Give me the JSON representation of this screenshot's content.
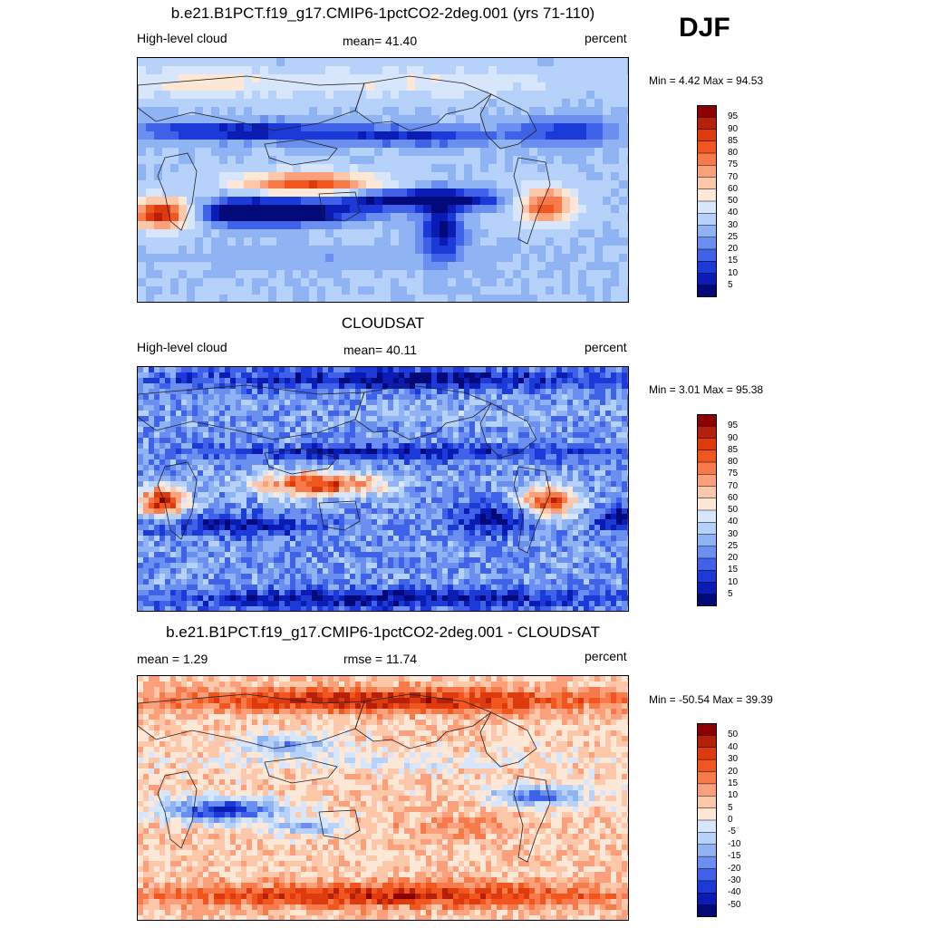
{
  "season": "DJF",
  "panels": [
    {
      "id": "model",
      "title": "b.e21.B1PCT.f19_g17.CMIP6-1pctCO2-2deg.001 (yrs 71-110)",
      "left": "High-level cloud",
      "center": "mean=  41.40",
      "right": "percent",
      "minmax": "Min =   4.42 Max =  94.53",
      "colorbar": {
        "labels": [
          "95",
          "90",
          "85",
          "80",
          "75",
          "70",
          "60",
          "50",
          "40",
          "30",
          "25",
          "20",
          "15",
          "10",
          "5"
        ],
        "colors": [
          "#8b0000",
          "#b5200a",
          "#dd3a0e",
          "#f2561f",
          "#f77b4a",
          "#fba07a",
          "#fdc7aa",
          "#fde8d8",
          "#d7e6fb",
          "#b7d2fa",
          "#8fb3f3",
          "#6a8ff0",
          "#3f62e8",
          "#1c3ad8",
          "#0b1cb5",
          "#020a7a"
        ]
      },
      "map_style": "smooth"
    },
    {
      "id": "obs",
      "title": "CLOUDSAT",
      "left": "High-level cloud",
      "center": "mean=  40.11",
      "right": "percent",
      "minmax": "Min =   3.01 Max =  95.38",
      "colorbar": {
        "labels": [
          "95",
          "90",
          "85",
          "80",
          "75",
          "70",
          "60",
          "50",
          "40",
          "30",
          "25",
          "20",
          "15",
          "10",
          "5"
        ],
        "colors": [
          "#8b0000",
          "#b5200a",
          "#dd3a0e",
          "#f2561f",
          "#f77b4a",
          "#fba07a",
          "#fdc7aa",
          "#fde8d8",
          "#d7e6fb",
          "#b7d2fa",
          "#8fb3f3",
          "#6a8ff0",
          "#3f62e8",
          "#1c3ad8",
          "#0b1cb5",
          "#020a7a"
        ]
      },
      "map_style": "noisy"
    },
    {
      "id": "diff",
      "title": "b.e21.B1PCT.f19_g17.CMIP6-1pctCO2-2deg.001 - CLOUDSAT",
      "left": "mean =   1.29",
      "center": "rmse =  11.74",
      "right": "percent",
      "minmax": "Min = -50.54 Max =  39.39",
      "colorbar": {
        "labels": [
          "50",
          "40",
          "30",
          "20",
          "15",
          "10",
          "5",
          "0",
          "-5",
          "-10",
          "-15",
          "-20",
          "-30",
          "-40",
          "-50"
        ],
        "colors": [
          "#8b0000",
          "#b5200a",
          "#dd3a0e",
          "#f2561f",
          "#f77b4a",
          "#fba07a",
          "#fdc7aa",
          "#fde8d8",
          "#d7e6fb",
          "#b7d2fa",
          "#8fb3f3",
          "#6a8ff0",
          "#3f62e8",
          "#1c3ad8",
          "#0b1cb5",
          "#020a7a"
        ]
      },
      "map_style": "diff"
    }
  ]
}
